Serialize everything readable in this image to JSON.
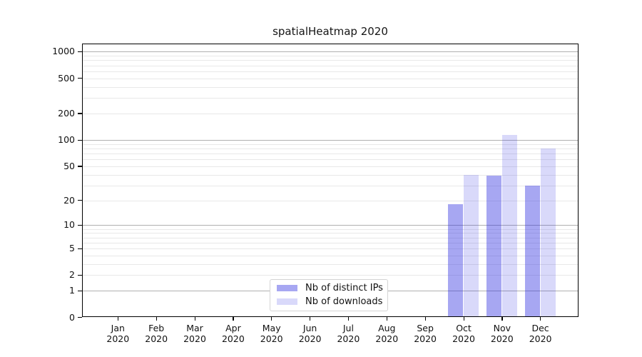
{
  "chart_data": {
    "type": "bar",
    "title": "spatialHeatmap 2020",
    "categories": [
      "Jan 2020",
      "Feb 2020",
      "Mar 2020",
      "Apr 2020",
      "May 2020",
      "Jun 2020",
      "Jul 2020",
      "Aug 2020",
      "Sep 2020",
      "Oct 2020",
      "Nov 2020",
      "Dec 2020"
    ],
    "series": [
      {
        "name": "Nb of distinct IPs",
        "color": "rgba(45,45,225,0.42)",
        "values": [
          null,
          null,
          null,
          null,
          null,
          null,
          null,
          null,
          null,
          18,
          39,
          30
        ]
      },
      {
        "name": "Nb of downloads",
        "color": "rgba(45,45,225,0.18)",
        "values": [
          null,
          null,
          null,
          null,
          null,
          null,
          null,
          null,
          null,
          40,
          115,
          80
        ]
      }
    ],
    "yticks": [
      0,
      1,
      2,
      5,
      10,
      20,
      50,
      100,
      200,
      500,
      1000
    ],
    "yscale": "pseudo-log (position proportional to log10(1+value))",
    "ylim": [
      0,
      1250
    ],
    "xlabel": "",
    "ylabel": "",
    "grid": {
      "major_at": [
        1,
        10,
        100,
        1000
      ],
      "minor_at": "2-9 within each decade",
      "major_color": "#b0b0b0",
      "minor_color": "#e8e8e8"
    },
    "legend": {
      "position": "lower center inside plot",
      "entries": [
        "Nb of distinct IPs",
        "Nb of downloads"
      ]
    }
  }
}
